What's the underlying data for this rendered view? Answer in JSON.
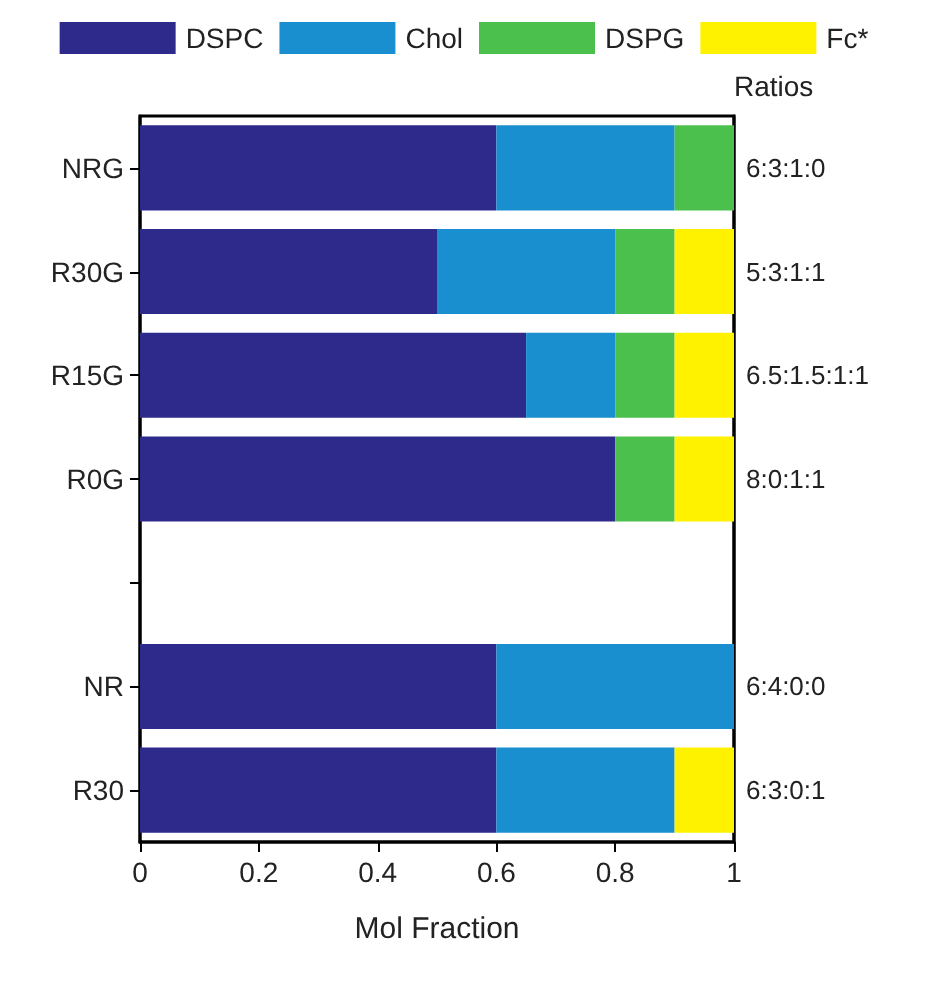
{
  "chart_data": {
    "type": "bar",
    "orientation": "horizontal",
    "stacked": true,
    "xlabel": "Mol Fraction",
    "categories": [
      "NRG",
      "R30G",
      "R15G",
      "R0G",
      null,
      "NR",
      "R30"
    ],
    "series": [
      {
        "name": "DSPC",
        "color": "#2e2a8c",
        "values": [
          0.6,
          0.5,
          0.65,
          0.8,
          null,
          0.6,
          0.6
        ]
      },
      {
        "name": "Chol",
        "color": "#1a8fd0",
        "values": [
          0.3,
          0.3,
          0.15,
          0,
          null,
          0.4,
          0.3
        ]
      },
      {
        "name": "DSPG",
        "color": "#4cc04c",
        "values": [
          0.1,
          0.1,
          0.1,
          0.1,
          null,
          0,
          0
        ]
      },
      {
        "name": "Fc*",
        "color": "#fff200",
        "values": [
          0,
          0.1,
          0.1,
          0.1,
          null,
          0,
          0.1
        ]
      }
    ],
    "xlim": [
      0,
      1
    ],
    "xticks": [
      0,
      0.2,
      0.4,
      0.6,
      0.8,
      1
    ],
    "legend": "top",
    "grid": false,
    "annotations": [
      "Ratios",
      "6:3:1:0",
      "5:3:1:1",
      "6.5:1.5:1:1",
      "8:0:1:1",
      "6:4:0:0",
      "6:3:0:1"
    ]
  }
}
